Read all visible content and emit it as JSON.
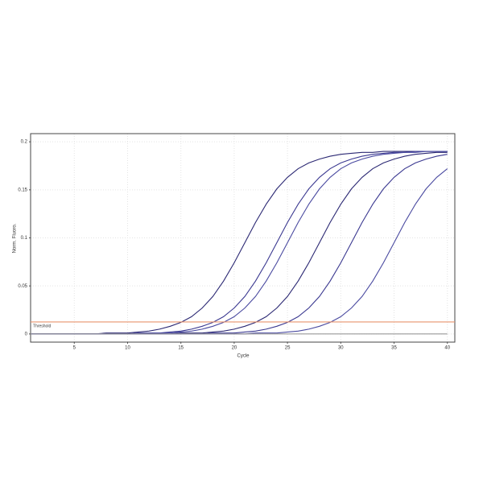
{
  "chart_data": {
    "type": "line",
    "x_label": "Cycle",
    "y_label": "Norm. Fluoro.",
    "x": [
      1,
      2,
      3,
      4,
      5,
      6,
      7,
      8,
      9,
      10,
      11,
      12,
      13,
      14,
      15,
      16,
      17,
      18,
      19,
      20,
      21,
      22,
      23,
      24,
      25,
      26,
      27,
      28,
      29,
      30,
      31,
      32,
      33,
      34,
      35,
      36,
      37,
      38,
      39,
      40
    ],
    "series": [
      {
        "color": "#2b2873",
        "values": [
          0,
          0,
          0,
          0,
          0,
          0,
          0,
          0.001,
          0.001,
          0.001,
          0.002,
          0.003,
          0.005,
          0.008,
          0.012,
          0.018,
          0.027,
          0.039,
          0.055,
          0.074,
          0.095,
          0.116,
          0.135,
          0.151,
          0.163,
          0.172,
          0.178,
          0.182,
          0.185,
          0.187,
          0.188,
          0.189,
          0.189,
          0.19,
          0.19,
          0.19,
          0.19,
          0.19,
          0.19,
          0.19
        ]
      },
      {
        "color": "#3a3890",
        "values": [
          0,
          0,
          0,
          0,
          0,
          0,
          0,
          0,
          0,
          0,
          0.001,
          0.001,
          0.001,
          0.002,
          0.003,
          0.005,
          0.008,
          0.012,
          0.018,
          0.027,
          0.039,
          0.055,
          0.074,
          0.095,
          0.116,
          0.135,
          0.151,
          0.163,
          0.172,
          0.178,
          0.182,
          0.185,
          0.187,
          0.188,
          0.189,
          0.189,
          0.19,
          0.19,
          0.19,
          0.19
        ]
      },
      {
        "color": "#4a4aa0",
        "values": [
          0,
          0,
          0,
          0,
          0,
          0,
          0,
          0,
          0,
          0,
          0,
          0.001,
          0.001,
          0.001,
          0.002,
          0.003,
          0.005,
          0.008,
          0.012,
          0.018,
          0.027,
          0.039,
          0.055,
          0.074,
          0.095,
          0.116,
          0.135,
          0.151,
          0.163,
          0.172,
          0.178,
          0.182,
          0.185,
          0.187,
          0.188,
          0.189,
          0.189,
          0.19,
          0.19,
          0.19
        ]
      },
      {
        "color": "#2b2873",
        "values": [
          0,
          0,
          0,
          0,
          0,
          0,
          0,
          0,
          0,
          0,
          0,
          0,
          0,
          0,
          0.001,
          0.001,
          0.001,
          0.002,
          0.003,
          0.005,
          0.008,
          0.012,
          0.018,
          0.027,
          0.039,
          0.055,
          0.074,
          0.095,
          0.116,
          0.135,
          0.151,
          0.163,
          0.172,
          0.178,
          0.182,
          0.185,
          0.187,
          0.188,
          0.189,
          0.189
        ]
      },
      {
        "color": "#3a3890",
        "values": [
          0,
          0,
          0,
          0,
          0,
          0,
          0,
          0,
          0,
          0,
          0,
          0,
          0,
          0,
          0,
          0,
          0,
          0.001,
          0.001,
          0.001,
          0.002,
          0.003,
          0.005,
          0.008,
          0.012,
          0.018,
          0.027,
          0.039,
          0.055,
          0.074,
          0.095,
          0.116,
          0.135,
          0.151,
          0.163,
          0.172,
          0.178,
          0.182,
          0.185,
          0.187
        ]
      },
      {
        "color": "#4a4aa0",
        "values": [
          0,
          0,
          0,
          0,
          0,
          0,
          0,
          0,
          0,
          0,
          0,
          0,
          0,
          0,
          0,
          0,
          0,
          0,
          0,
          0,
          0,
          0.001,
          0.001,
          0.001,
          0.002,
          0.003,
          0.005,
          0.008,
          0.012,
          0.018,
          0.027,
          0.039,
          0.055,
          0.074,
          0.095,
          0.116,
          0.135,
          0.151,
          0.163,
          0.172
        ]
      },
      {
        "color": "#999999",
        "values": [
          0,
          0,
          0,
          0,
          0,
          0,
          0,
          0,
          0,
          0,
          0,
          0,
          0,
          0,
          0,
          0,
          0,
          0,
          0,
          0,
          0,
          0,
          0,
          0,
          0,
          0,
          0,
          0,
          0,
          0,
          0,
          0,
          0,
          0,
          0,
          0,
          0,
          0,
          0,
          0
        ]
      }
    ],
    "threshold": {
      "value": 0.0125,
      "label": "Threshold",
      "color": "#e8946e"
    },
    "xlim": [
      0.9,
      40.7
    ],
    "xticks": [
      5,
      10,
      15,
      20,
      25,
      30,
      35,
      40
    ],
    "ylim": [
      -0.0085,
      0.2085
    ],
    "yticks": [
      0,
      0.05,
      0.1,
      0.15,
      0.2
    ],
    "grid": true
  }
}
